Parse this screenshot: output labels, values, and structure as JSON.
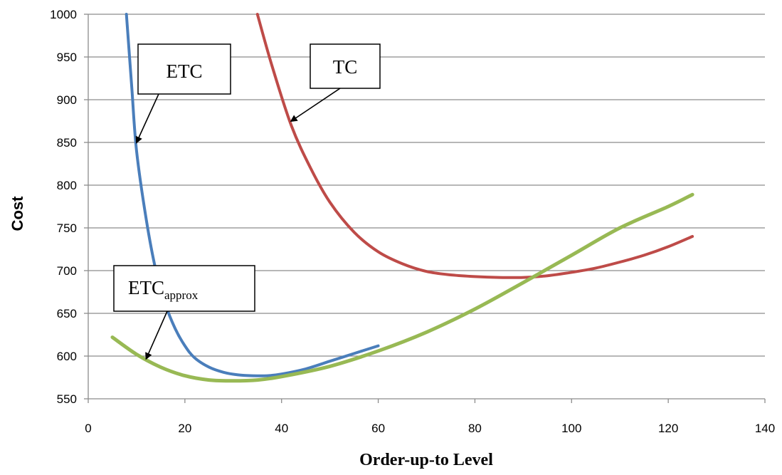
{
  "chart_data": {
    "type": "line",
    "title": "",
    "xlabel": "Order-up-to Level",
    "ylabel": "Cost",
    "xlim": [
      0,
      140
    ],
    "ylim": [
      550,
      1000
    ],
    "x_ticks": [
      0,
      20,
      40,
      60,
      80,
      100,
      120,
      140
    ],
    "y_ticks": [
      550,
      600,
      650,
      700,
      750,
      800,
      850,
      900,
      950,
      1000
    ],
    "grid": "horizontal",
    "legend": "none",
    "series": [
      {
        "name": "ETC",
        "color": "#4a7ebb",
        "x": [
          7.9,
          9,
          10,
          12,
          14,
          16,
          18,
          20,
          22,
          25,
          28,
          31,
          34,
          37,
          40,
          45,
          50,
          55,
          60
        ],
        "y": [
          1000,
          915,
          840,
          760,
          700,
          660,
          632,
          612,
          598,
          587,
          581,
          578,
          577,
          577,
          579,
          585,
          594,
          603,
          612
        ]
      },
      {
        "name": "TC",
        "color": "#be4b48",
        "x": [
          35,
          38,
          42,
          46,
          50,
          55,
          60,
          65,
          70,
          75,
          80,
          85,
          90,
          95,
          100,
          105,
          110,
          115,
          120,
          125
        ],
        "y": [
          1000,
          940,
          870,
          820,
          780,
          745,
          722,
          708,
          699,
          695,
          693,
          692,
          692,
          694,
          698,
          703,
          710,
          718,
          728,
          740
        ]
      },
      {
        "name": "ETCapprox",
        "color": "#98b954",
        "x": [
          5,
          10,
          15,
          20,
          25,
          30,
          35,
          40,
          50,
          60,
          70,
          80,
          90,
          100,
          110,
          120,
          125
        ],
        "y": [
          622,
          602,
          587,
          577,
          572,
          571,
          572,
          576,
          588,
          606,
          628,
          655,
          686,
          718,
          750,
          775,
          789
        ]
      }
    ],
    "annotations": [
      {
        "series": "ETC",
        "label": "ETC",
        "sub": "",
        "point_x": 10,
        "point_y": 850
      },
      {
        "series": "TC",
        "label": "TC",
        "sub": "",
        "point_x": 42,
        "point_y": 875
      },
      {
        "series": "ETCapprox",
        "label": "ETC",
        "sub": "approx",
        "point_x": 12,
        "point_y": 597
      }
    ]
  }
}
